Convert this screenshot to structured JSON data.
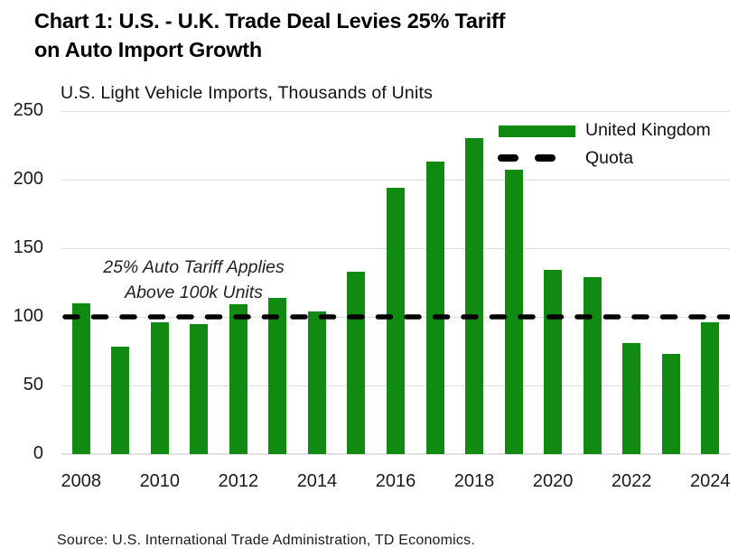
{
  "title": "Chart 1: U.S. - U.K. Trade Deal Levies 25% Tariff\non Auto Import Growth",
  "subtitle": "U.S. Light Vehicle Imports, Thousands of Units",
  "annotation": "25% Auto Tariff Applies\nAbove 100k Units",
  "source": "Source: U.S. International Trade Administration, TD Economics.",
  "legend": {
    "position": "top-right",
    "items": [
      {
        "label": "United Kingdom",
        "marker": "bar-swatch",
        "color": "#108a10"
      },
      {
        "label": "Quota",
        "marker": "dashed-line",
        "color": "#000000"
      }
    ]
  },
  "colors": {
    "bar": "#108a10",
    "quota_line": "#000000",
    "gridline": "#dcdcdc",
    "title_text": "#000000",
    "axis_text": "#1a1a1a",
    "annotation_text": "#222222",
    "source_text": "#1a1a1a"
  },
  "chart_data": {
    "type": "bar",
    "title": "U.S. Light Vehicle Imports, Thousands of Units",
    "categories": [
      2008,
      2009,
      2010,
      2011,
      2012,
      2013,
      2014,
      2015,
      2016,
      2017,
      2018,
      2019,
      2020,
      2021,
      2022,
      2023,
      2024
    ],
    "series": [
      {
        "name": "United Kingdom",
        "values": [
          110,
          78,
          96,
          95,
          109,
          114,
          104,
          133,
          194,
          213,
          230,
          207,
          134,
          129,
          81,
          73,
          96
        ]
      }
    ],
    "quota_line_y": 100,
    "xtick_labels": [
      "2008",
      "2010",
      "2012",
      "2014",
      "2016",
      "2018",
      "2020",
      "2022",
      "2024"
    ],
    "yticks": [
      0,
      50,
      100,
      150,
      200,
      250
    ],
    "ylim": [
      0,
      250
    ],
    "xlabel": "",
    "ylabel": "Thousands of Units",
    "grid": true,
    "legend_position": "top-right",
    "annotations": [
      "25% Auto Tariff Applies\nAbove 100k Units"
    ]
  }
}
